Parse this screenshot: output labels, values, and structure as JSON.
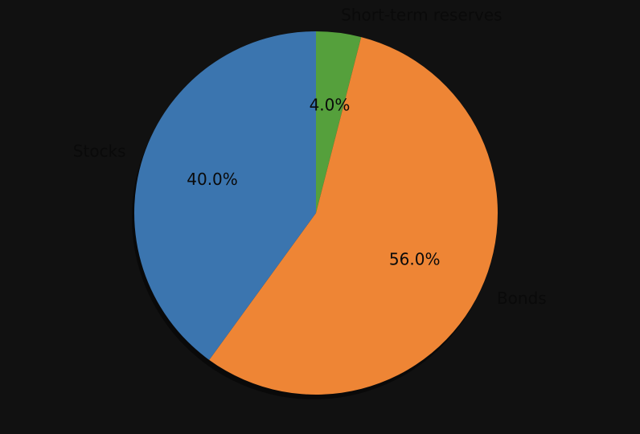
{
  "chart_data": {
    "type": "pie",
    "title": "",
    "start_angle_deg": 90,
    "direction": "clockwise",
    "shadow": true,
    "slices": [
      {
        "label": "Short-term reserves",
        "value": 4.0,
        "pct_label": "4.0%",
        "color": "#55a03c"
      },
      {
        "label": "Bonds",
        "value": 56.0,
        "pct_label": "56.0%",
        "color": "#ee8535"
      },
      {
        "label": "Stocks",
        "value": 40.0,
        "pct_label": "40.0%",
        "color": "#3b75af"
      }
    ]
  },
  "colors": {
    "background": "#111111",
    "text": "#0a0a0a"
  }
}
